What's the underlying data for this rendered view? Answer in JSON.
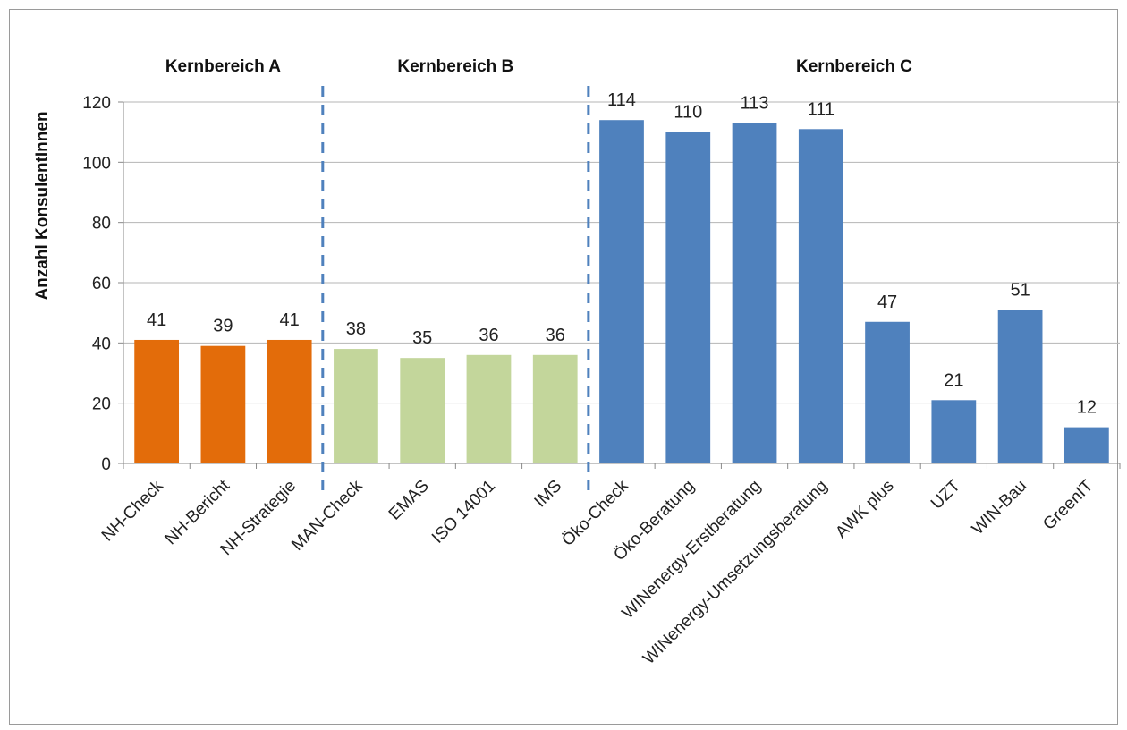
{
  "chart_data": {
    "type": "bar",
    "title": "",
    "xlabel": "",
    "ylabel": "Anzahl KonsulentInnen",
    "ylim": [
      0,
      120
    ],
    "yticks": [
      0,
      20,
      40,
      60,
      80,
      100,
      120
    ],
    "grid": true,
    "categories": [
      "NH-Check",
      "NH-Bericht",
      "NH-Strategie",
      "MAN-Check",
      "EMAS",
      "ISO 14001",
      "IMS",
      "Öko-Check",
      "Öko-Beratung",
      "WINenergy-Erstberatung",
      "WINenergy-Umsetzungsberatung",
      "AWK plus",
      "UZT",
      "WIN-Bau",
      "GreenIT"
    ],
    "values": [
      41,
      39,
      41,
      38,
      35,
      36,
      36,
      114,
      110,
      113,
      111,
      47,
      21,
      51,
      12
    ],
    "groups": [
      {
        "name": "Kernbereich A",
        "start": 0,
        "end": 2,
        "color": "#e36c0a"
      },
      {
        "name": "Kernbereich B",
        "start": 3,
        "end": 6,
        "color": "#c3d69b"
      },
      {
        "name": "Kernbereich C",
        "start": 7,
        "end": 14,
        "color": "#4f81bd"
      }
    ],
    "separator_color": "#4f81bd"
  }
}
